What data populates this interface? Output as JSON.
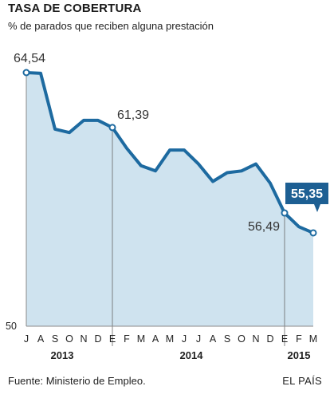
{
  "header": {
    "title": "TASA DE COBERTURA",
    "subtitle": "% de parados que reciben alguna prestación"
  },
  "footer": {
    "source": "Fuente: Ministerio de Empleo.",
    "brand": "EL PAÍS"
  },
  "colors": {
    "line": "#1d6aa0",
    "area": "#cfe3ef",
    "callout": "#1d5f93",
    "axis": "#888888"
  },
  "chart_data": {
    "type": "area",
    "ylabel_min": "50",
    "ylim": [
      50,
      65.5
    ],
    "grid": false,
    "x": [
      "J",
      "A",
      "S",
      "O",
      "N",
      "D",
      "E",
      "F",
      "M",
      "A",
      "M",
      "J",
      "J",
      "A",
      "S",
      "O",
      "N",
      "D",
      "E",
      "F",
      "M"
    ],
    "years": [
      {
        "label": "2013",
        "from": 0,
        "to": 5
      },
      {
        "label": "2014",
        "from": 6,
        "to": 17
      },
      {
        "label": "2015",
        "from": 18,
        "to": 20
      }
    ],
    "values": [
      64.54,
      64.5,
      61.3,
      61.1,
      61.8,
      61.8,
      61.39,
      60.2,
      59.2,
      58.9,
      60.1,
      60.1,
      59.3,
      58.3,
      58.8,
      58.9,
      59.3,
      58.2,
      56.49,
      55.7,
      55.35
    ],
    "annotations": [
      {
        "index": 0,
        "label": "64,54",
        "style": "plain"
      },
      {
        "index": 6,
        "label": "61,39",
        "style": "plain"
      },
      {
        "index": 18,
        "label": "56,49",
        "style": "plain"
      },
      {
        "index": 20,
        "label": "55,35",
        "style": "callout"
      }
    ]
  }
}
